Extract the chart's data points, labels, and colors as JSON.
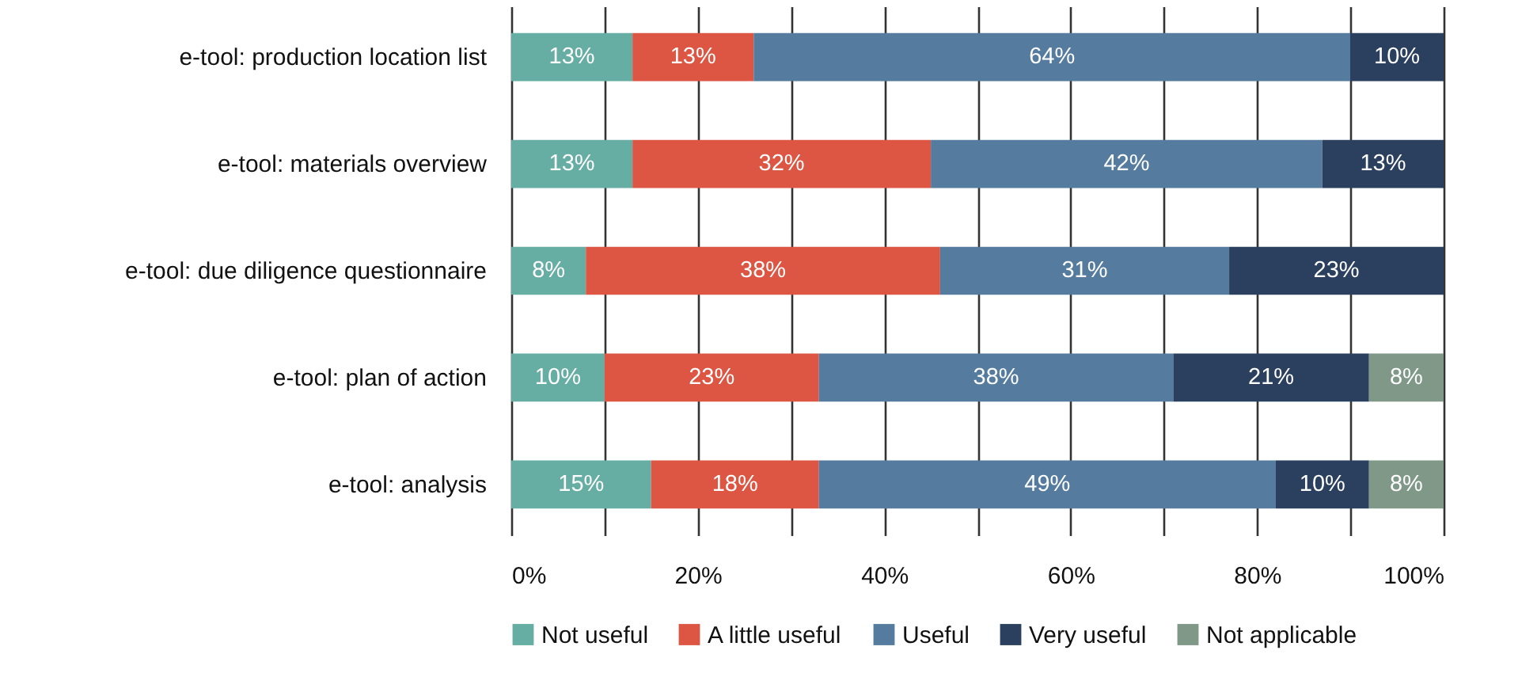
{
  "chart_data": {
    "type": "bar",
    "orientation": "horizontal",
    "stacked": true,
    "categories": [
      "e-tool: production location list",
      "e-tool: materials overview",
      "e-tool: due diligence questionnaire",
      "e-tool: plan of action",
      "e-tool: analysis"
    ],
    "series": [
      {
        "name": "Not useful",
        "color": "#66ada3",
        "values": [
          13,
          13,
          8,
          10,
          15
        ],
        "value_labels": [
          "13%",
          "13%",
          "8%",
          "10%",
          "15%"
        ]
      },
      {
        "name": "A little useful",
        "color": "#dc5643",
        "values": [
          13,
          32,
          38,
          23,
          18
        ],
        "value_labels": [
          "13%",
          "32%",
          "38%",
          "23%",
          "18%"
        ]
      },
      {
        "name": "Useful",
        "color": "#557c9f",
        "values": [
          64,
          42,
          31,
          38,
          49
        ],
        "value_labels": [
          "64%",
          "42%",
          "31%",
          "38%",
          "49%"
        ]
      },
      {
        "name": "Very useful",
        "color": "#2b405e",
        "values": [
          10,
          13,
          23,
          21,
          10
        ],
        "value_labels": [
          "10%",
          "13%",
          "23%",
          "21%",
          "10%"
        ]
      },
      {
        "name": "Not applicable",
        "color": "#7f9887",
        "values": [
          null,
          null,
          null,
          8,
          8
        ],
        "value_labels": [
          null,
          null,
          null,
          "8%",
          "8%"
        ]
      }
    ],
    "xlim": [
      0,
      100
    ],
    "xticks": [
      {
        "value": 0,
        "label": "0%"
      },
      {
        "value": 10,
        "label": null
      },
      {
        "value": 20,
        "label": "20%"
      },
      {
        "value": 30,
        "label": null
      },
      {
        "value": 40,
        "label": "40%"
      },
      {
        "value": 50,
        "label": null
      },
      {
        "value": 60,
        "label": "60%"
      },
      {
        "value": 70,
        "label": null
      },
      {
        "value": 80,
        "label": "80%"
      },
      {
        "value": 90,
        "label": null
      },
      {
        "value": 100,
        "label": "100%"
      }
    ],
    "grid": "x",
    "legend": "bottom"
  }
}
